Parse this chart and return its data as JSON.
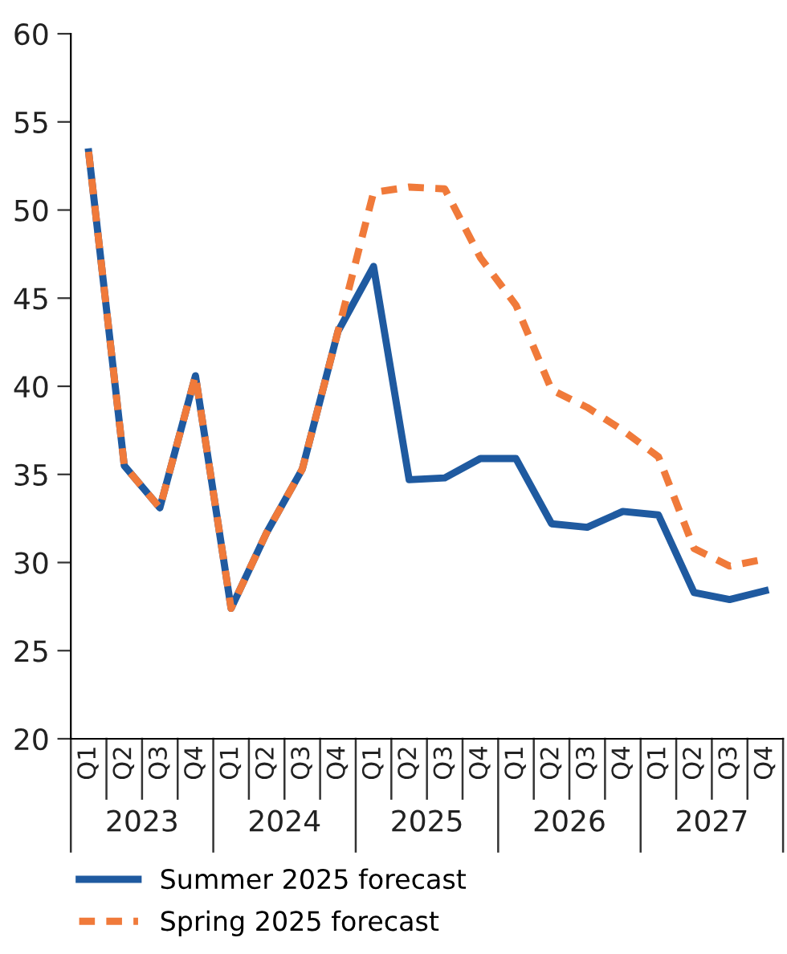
{
  "chart_data": {
    "type": "line",
    "categories": [
      "Q1",
      "Q2",
      "Q3",
      "Q4",
      "Q1",
      "Q2",
      "Q3",
      "Q4",
      "Q1",
      "Q2",
      "Q3",
      "Q4",
      "Q1",
      "Q2",
      "Q3",
      "Q4",
      "Q1",
      "Q2",
      "Q3",
      "Q4"
    ],
    "annotations": [
      "2023",
      "2024",
      "2025",
      "2026",
      "2027"
    ],
    "series": [
      {
        "name": "Summer 2025 forecast",
        "color": "#1f5aa0",
        "line_style": "solid",
        "values": [
          53.3,
          35.5,
          33.1,
          40.6,
          27.4,
          31.7,
          35.3,
          43.1,
          46.8,
          34.7,
          34.8,
          35.9,
          35.9,
          32.2,
          32.0,
          32.9,
          32.7,
          28.3,
          27.9,
          28.4
        ]
      },
      {
        "name": "Spring 2025 forecast",
        "color": "#f07a3a",
        "line_style": "dashed",
        "values": [
          53.3,
          35.5,
          33.1,
          40.6,
          27.4,
          31.7,
          35.3,
          43.1,
          51.0,
          51.3,
          51.2,
          47.3,
          44.6,
          39.8,
          38.8,
          37.5,
          36.0,
          30.8,
          29.8,
          30.2
        ]
      }
    ],
    "ylim": [
      20,
      60
    ],
    "yticks": [
      20,
      25,
      30,
      35,
      40,
      45,
      50,
      55,
      60
    ],
    "grid": false,
    "legend": "bottom",
    "marker": "none"
  }
}
